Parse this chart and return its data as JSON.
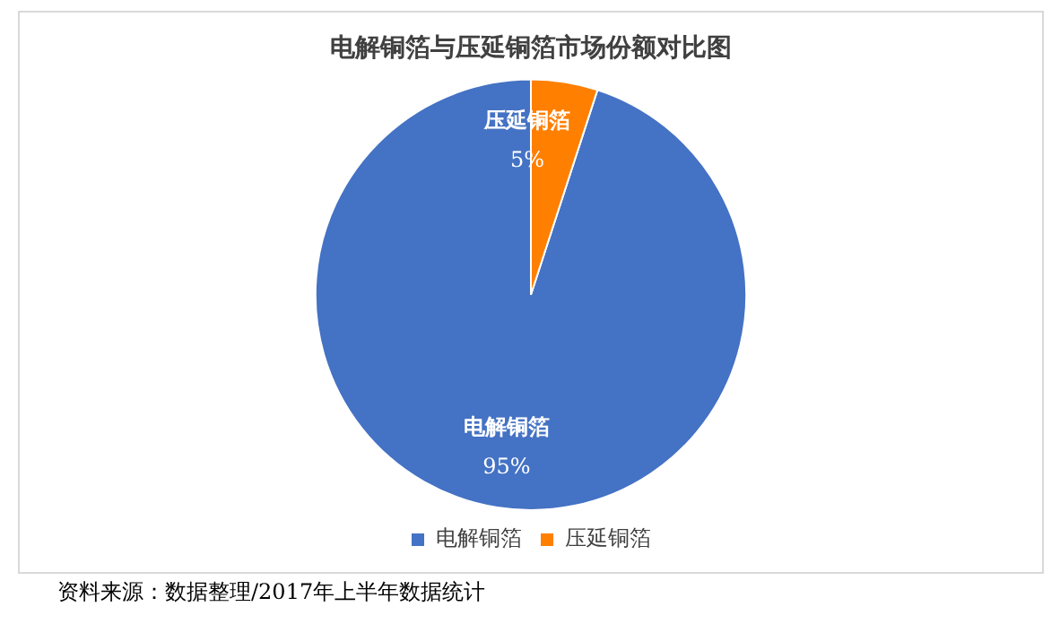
{
  "chart_data": {
    "type": "pie",
    "title": "电解铜箔与压延铜箔市场份额对比图",
    "categories": [
      "电解铜箔",
      "压延铜箔"
    ],
    "values": [
      95,
      5
    ],
    "colors": [
      "#4472c4",
      "#ff7f00"
    ],
    "value_labels": [
      "95%",
      "5%"
    ],
    "legend": "bottom",
    "annotations": [
      "资料来源：数据整理/2017年上半年数据统计"
    ]
  }
}
